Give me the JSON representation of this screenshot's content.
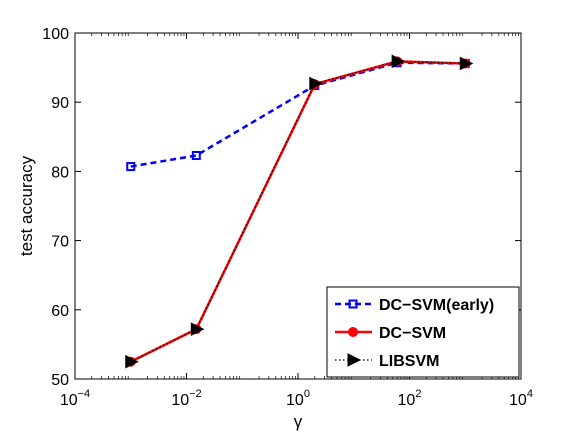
{
  "chart_data": {
    "type": "line",
    "xlabel": "γ",
    "ylabel": "test accuracy",
    "xscale": "log",
    "xlim": [
      0.0001,
      10000
    ],
    "ylim": [
      50,
      100
    ],
    "grid": false,
    "legend_position": "bottom-right",
    "x_ticks": [
      {
        "value": 0.0001,
        "base": "10",
        "exp": "−4"
      },
      {
        "value": 0.01,
        "base": "10",
        "exp": "−2"
      },
      {
        "value": 1,
        "base": "10",
        "exp": "0"
      },
      {
        "value": 100,
        "base": "10",
        "exp": "2"
      },
      {
        "value": 10000,
        "base": "10",
        "exp": "4"
      }
    ],
    "y_ticks": [
      "50",
      "60",
      "70",
      "80",
      "90",
      "100"
    ],
    "series": [
      {
        "name": "DC−SVM(early)",
        "color": "#0000ff",
        "line_style": "dashed",
        "marker": "square",
        "x": [
          0.001,
          0.015,
          2,
          60,
          1000
        ],
        "y": [
          80.7,
          82.3,
          92.4,
          95.7,
          95.6
        ]
      },
      {
        "name": "DC−SVM",
        "color": "#ff0000",
        "line_style": "solid",
        "marker": "circle",
        "x": [
          0.001,
          0.015,
          2,
          60,
          1000
        ],
        "y": [
          52.5,
          57.2,
          92.6,
          95.9,
          95.6
        ]
      },
      {
        "name": "LIBSVM",
        "color": "#000000",
        "line_style": "dotted",
        "marker": "triangle-right",
        "x": [
          0.001,
          0.015,
          2,
          60,
          1000
        ],
        "y": [
          52.5,
          57.2,
          92.7,
          95.9,
          95.6
        ]
      }
    ]
  }
}
